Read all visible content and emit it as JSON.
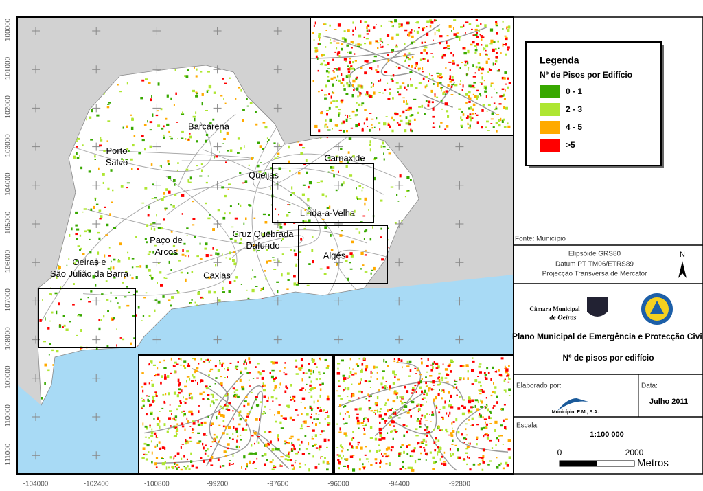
{
  "axes": {
    "y_labels": [
      -100000,
      -101000,
      -102000,
      -103000,
      -104000,
      -105000,
      -106000,
      -107000,
      -108000,
      -109000,
      -110000,
      -111000
    ],
    "x_labels": [
      -104000,
      -102400,
      -100800,
      -99200,
      -97600,
      -96000,
      -94400,
      -92800
    ]
  },
  "places": [
    {
      "lines": [
        "Barcarena"
      ]
    },
    {
      "lines": [
        "Porto",
        "Salvo"
      ]
    },
    {
      "lines": [
        "Queijas"
      ]
    },
    {
      "lines": [
        "Carnaxide"
      ]
    },
    {
      "lines": [
        "Linda-a-Velha"
      ]
    },
    {
      "lines": [
        "Paço de",
        "Arcos"
      ]
    },
    {
      "lines": [
        "Cruz Quebrada",
        "Dafundo"
      ]
    },
    {
      "lines": [
        "Algés"
      ]
    },
    {
      "lines": [
        "Oeiras e",
        "São Julião da Barra"
      ]
    },
    {
      "lines": [
        "Caxias"
      ]
    }
  ],
  "legend": {
    "title": "Legenda",
    "subtitle": "Nº de Pisos por Edifício",
    "items": [
      {
        "label": "0 -  1",
        "color": "#38a800"
      },
      {
        "label": "2 - 3",
        "color": "#aee632"
      },
      {
        "label": "4 - 5",
        "color": "#ffaa00"
      },
      {
        "label": ">5",
        "color": "#ff0000"
      }
    ]
  },
  "source": "Fonte: Município",
  "projection": [
    "Elipsóide GRS80",
    "Datum PT-TM06/ETRS89",
    "Projecção Transversa de Mercator"
  ],
  "north": "N",
  "logo": [
    "Câmara Municipal",
    "de Oeiras"
  ],
  "plan_title": "Plano Municipal de Emergência e Protecção Civil",
  "map_title": "Nº de pisos por edifício",
  "author": {
    "label": "Elaborado por:",
    "name": "Município, E.M., S.A."
  },
  "date": {
    "label": "Data:",
    "value": "Julho 2011"
  },
  "scale": {
    "label": "Escala:",
    "ratio": "1:100 000",
    "start": 0,
    "end": 2000,
    "unit": "Metros"
  }
}
